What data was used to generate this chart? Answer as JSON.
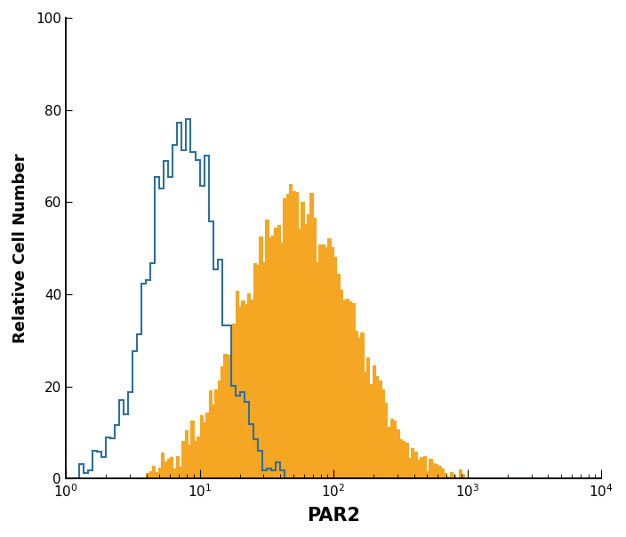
{
  "title": "",
  "xlabel": "PAR2",
  "ylabel": "Relative Cell Number",
  "xlim_log": [
    1,
    10000
  ],
  "ylim": [
    0,
    100
  ],
  "yticks": [
    0,
    20,
    40,
    60,
    80,
    100
  ],
  "blue_color": "#2e6fa3",
  "orange_color": "#f5a623",
  "blue_peak_x": 7.5,
  "blue_peak_y": 77,
  "blue_sigma_log": 0.26,
  "orange_peak_x": 52,
  "orange_peak_y": 60,
  "orange_sigma_log": 0.4,
  "background_color": "#ffffff",
  "xlabel_fontsize": 15,
  "ylabel_fontsize": 13,
  "tick_fontsize": 11,
  "n_bins_blue": 120,
  "n_bins_orange": 180
}
